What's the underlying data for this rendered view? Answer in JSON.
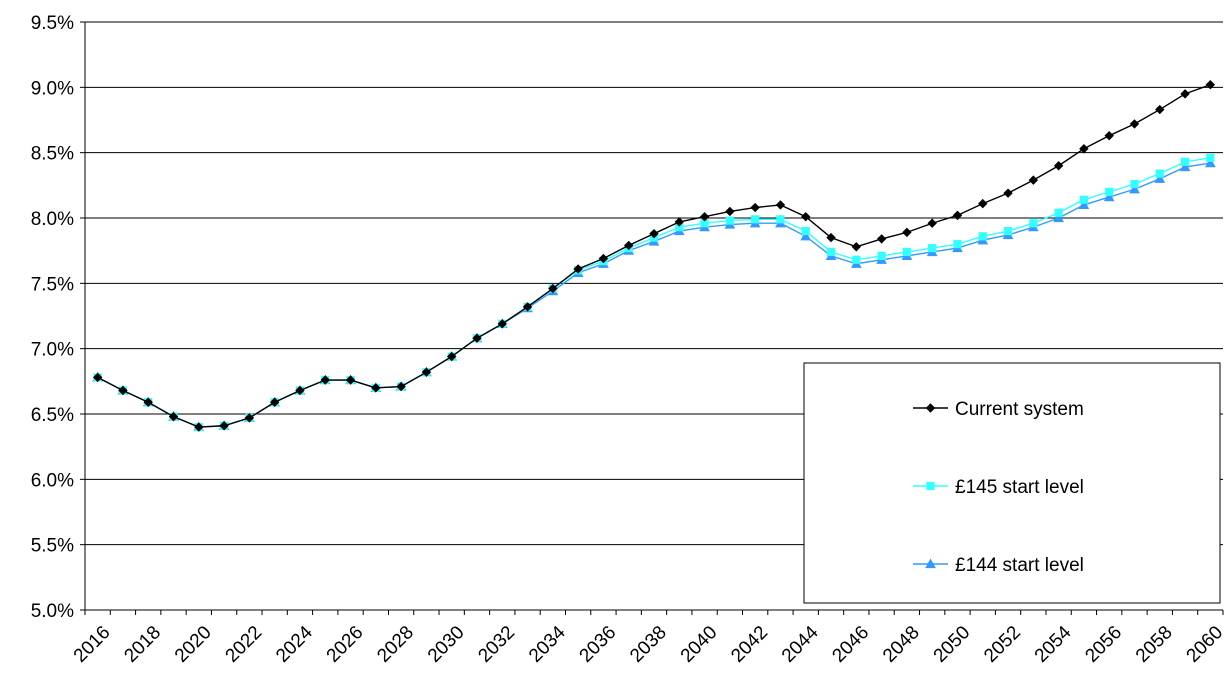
{
  "chart_data": {
    "type": "line",
    "title": "",
    "xlabel": "",
    "ylabel": "",
    "ylim": [
      5.0,
      9.5
    ],
    "y_tick_labels": [
      "5.0%",
      "5.5%",
      "6.0%",
      "6.5%",
      "7.0%",
      "7.5%",
      "8.0%",
      "8.5%",
      "9.0%",
      "9.5%"
    ],
    "x_tick_labels": [
      "2016",
      "2018",
      "2020",
      "2022",
      "2024",
      "2026",
      "2028",
      "2030",
      "2032",
      "2034",
      "2036",
      "2038",
      "2040",
      "2042",
      "2044",
      "2046",
      "2048",
      "2050",
      "2052",
      "2054",
      "2056",
      "2058",
      "2060"
    ],
    "x": [
      2016,
      2017,
      2018,
      2019,
      2020,
      2021,
      2022,
      2023,
      2024,
      2025,
      2026,
      2027,
      2028,
      2029,
      2030,
      2031,
      2032,
      2033,
      2034,
      2035,
      2036,
      2037,
      2038,
      2039,
      2040,
      2041,
      2042,
      2043,
      2044,
      2045,
      2046,
      2047,
      2048,
      2049,
      2050,
      2051,
      2052,
      2053,
      2054,
      2055,
      2056,
      2057,
      2058,
      2059,
      2060
    ],
    "grid": "horizontal",
    "legend_position": "right",
    "series": [
      {
        "name": "Current system",
        "color": "#000000",
        "marker": "diamond",
        "values": [
          6.78,
          6.68,
          6.59,
          6.48,
          6.4,
          6.41,
          6.47,
          6.59,
          6.68,
          6.76,
          6.76,
          6.7,
          6.71,
          6.82,
          6.94,
          7.08,
          7.19,
          7.32,
          7.46,
          7.61,
          7.69,
          7.79,
          7.88,
          7.97,
          8.01,
          8.05,
          8.08,
          8.1,
          8.01,
          7.85,
          7.78,
          7.84,
          7.89,
          7.96,
          8.02,
          8.11,
          8.19,
          8.29,
          8.4,
          8.53,
          8.63,
          8.72,
          8.83,
          8.95,
          9.02
        ]
      },
      {
        "name": "£145 start level",
        "color": "#33ffff",
        "marker": "square",
        "values": [
          6.78,
          6.68,
          6.59,
          6.48,
          6.4,
          6.41,
          6.47,
          6.59,
          6.68,
          6.76,
          6.76,
          6.7,
          6.71,
          6.82,
          6.94,
          7.08,
          7.19,
          7.32,
          7.46,
          7.6,
          7.67,
          7.77,
          7.85,
          7.93,
          7.96,
          7.98,
          7.99,
          7.99,
          7.9,
          7.74,
          7.68,
          7.71,
          7.74,
          7.77,
          7.8,
          7.86,
          7.9,
          7.96,
          8.04,
          8.14,
          8.2,
          8.26,
          8.34,
          8.43,
          8.46
        ]
      },
      {
        "name": "£144 start level",
        "color": "#3399ff",
        "marker": "triangle",
        "values": [
          6.78,
          6.68,
          6.59,
          6.48,
          6.4,
          6.41,
          6.47,
          6.59,
          6.68,
          6.76,
          6.76,
          6.7,
          6.71,
          6.82,
          6.94,
          7.08,
          7.19,
          7.31,
          7.44,
          7.58,
          7.65,
          7.75,
          7.82,
          7.9,
          7.93,
          7.95,
          7.96,
          7.96,
          7.86,
          7.71,
          7.65,
          7.68,
          7.71,
          7.74,
          7.77,
          7.83,
          7.87,
          7.93,
          8.0,
          8.1,
          8.16,
          8.22,
          8.3,
          8.39,
          8.42
        ]
      }
    ]
  }
}
